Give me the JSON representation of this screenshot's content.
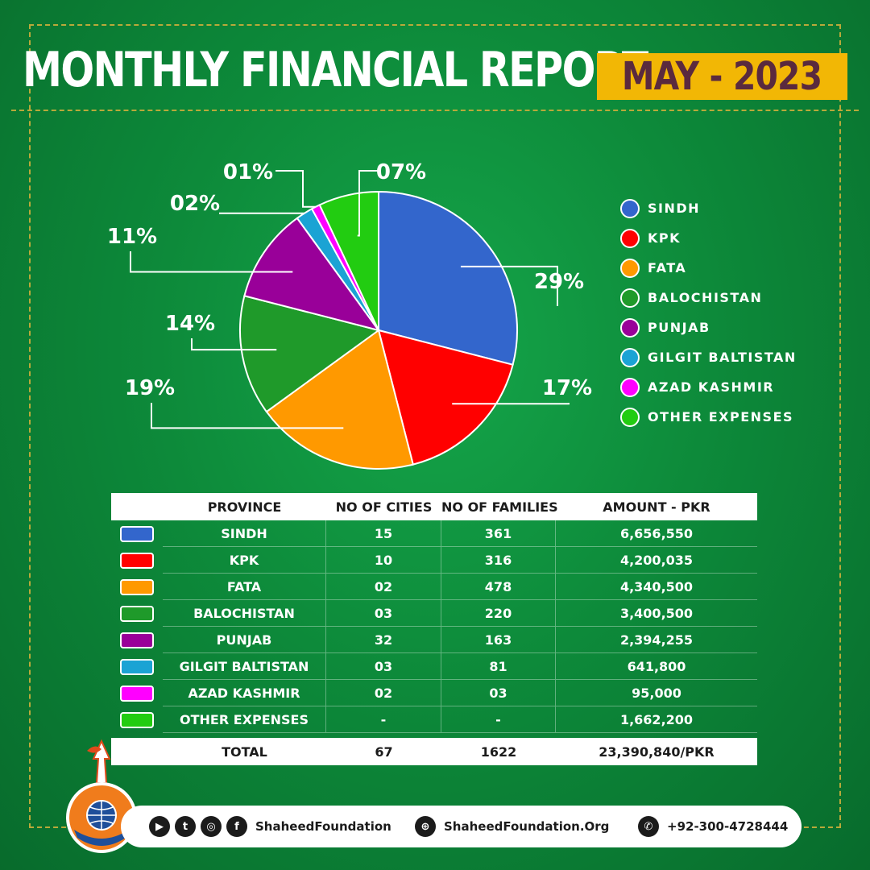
{
  "header": {
    "title": "MONTHLY FINANCIAL REPORT",
    "month": "MAY - 2023"
  },
  "colors": {
    "sindh": "#3366cc",
    "kpk": "#ff0000",
    "fata": "#ff9900",
    "balochistan": "#1f9a2a",
    "punjab": "#990099",
    "gilgit": "#1ba3d4",
    "kashmir": "#ff00ff",
    "other": "#22cc11"
  },
  "chart_data": {
    "type": "pie",
    "slices": [
      {
        "label": "SINDH",
        "value": 29,
        "pct_label": "29%",
        "color": "#3366cc"
      },
      {
        "label": "KPK",
        "value": 17,
        "pct_label": "17%",
        "color": "#ff0000"
      },
      {
        "label": "FATA",
        "value": 19,
        "pct_label": "19%",
        "color": "#ff9900"
      },
      {
        "label": "BALOCHISTAN",
        "value": 14,
        "pct_label": "14%",
        "color": "#1f9a2a"
      },
      {
        "label": "PUNJAB",
        "value": 11,
        "pct_label": "11%",
        "color": "#990099"
      },
      {
        "label": "GILGIT BALTISTAN",
        "value": 2,
        "pct_label": "02%",
        "color": "#1ba3d4"
      },
      {
        "label": "AZAD KASHMIR",
        "value": 1,
        "pct_label": "01%",
        "color": "#ff00ff"
      },
      {
        "label": "OTHER EXPENSES",
        "value": 7,
        "pct_label": "07%",
        "color": "#22cc11"
      }
    ],
    "legend_position": "right"
  },
  "legend": [
    {
      "label": "SINDH",
      "color": "#3366cc"
    },
    {
      "label": "KPK",
      "color": "#ff0000"
    },
    {
      "label": "FATA",
      "color": "#ff9900"
    },
    {
      "label": "BALOCHISTAN",
      "color": "#1f9a2a"
    },
    {
      "label": "PUNJAB",
      "color": "#990099"
    },
    {
      "label": "GILGIT BALTISTAN",
      "color": "#1ba3d4"
    },
    {
      "label": "AZAD KASHMIR",
      "color": "#ff00ff"
    },
    {
      "label": "OTHER EXPENSES",
      "color": "#22cc11"
    }
  ],
  "table": {
    "headers": {
      "province": "PROVINCE",
      "cities": "NO OF CITIES",
      "families": "NO OF FAMILIES",
      "amount": "AMOUNT - PKR"
    },
    "rows": [
      {
        "province": "SINDH",
        "cities": "15",
        "families": "361",
        "amount": "6,656,550",
        "color": "#3366cc"
      },
      {
        "province": "KPK",
        "cities": "10",
        "families": "316",
        "amount": "4,200,035",
        "color": "#ff0000"
      },
      {
        "province": "FATA",
        "cities": "02",
        "families": "478",
        "amount": "4,340,500",
        "color": "#ff9900"
      },
      {
        "province": "BALOCHISTAN",
        "cities": "03",
        "families": "220",
        "amount": "3,400,500",
        "color": "#1f9a2a"
      },
      {
        "province": "PUNJAB",
        "cities": "32",
        "families": "163",
        "amount": "2,394,255",
        "color": "#990099"
      },
      {
        "province": "GILGIT BALTISTAN",
        "cities": "03",
        "families": "81",
        "amount": "641,800",
        "color": "#1ba3d4"
      },
      {
        "province": "AZAD KASHMIR",
        "cities": "02",
        "families": "03",
        "amount": "95,000",
        "color": "#ff00ff"
      },
      {
        "province": "OTHER EXPENSES",
        "cities": "-",
        "families": "-",
        "amount": "1,662,200",
        "color": "#22cc11"
      }
    ],
    "total": {
      "label": "TOTAL",
      "cities": "67",
      "families": "1622",
      "amount": "23,390,840/PKR"
    }
  },
  "footer": {
    "social_handle": "ShaheedFoundation",
    "website": "ShaheedFoundation.Org",
    "phone": "+92-300-4728444",
    "icons": [
      "youtube-icon",
      "twitter-icon",
      "instagram-icon",
      "facebook-icon",
      "globe-icon",
      "phone-icon"
    ]
  }
}
